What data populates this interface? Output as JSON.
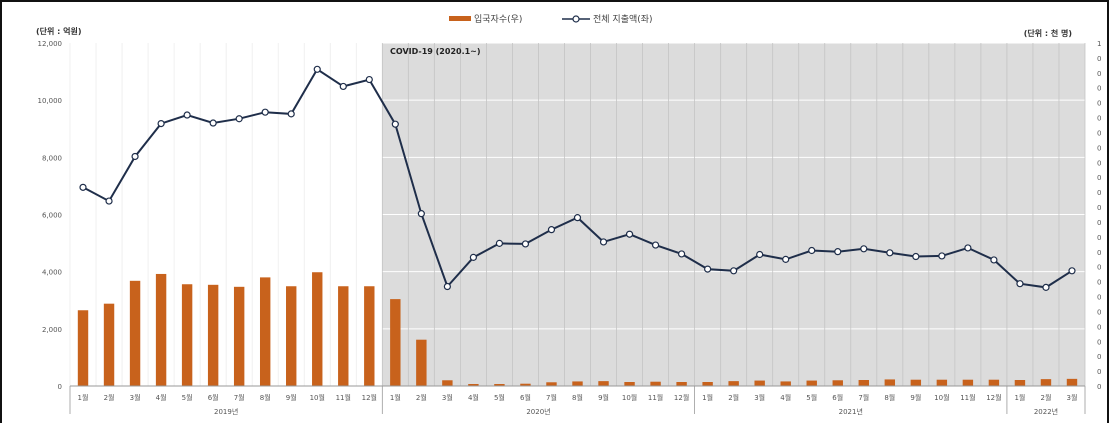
{
  "chart_data": {
    "type": "bar+line",
    "left_unit_label": "(단위 : 억원)",
    "right_unit_label": "(단위 : 천 명)",
    "annotation": "COVID-19 (2020.1~)",
    "legend": [
      {
        "name": "입국자수(우)",
        "kind": "bar",
        "color": "#c8621c"
      },
      {
        "name": "전체 지출액(좌)",
        "kind": "line",
        "color": "#1f2e4a"
      }
    ],
    "y_left": {
      "ticks": [
        "0",
        "2,000",
        "4,000",
        "6,000",
        "8,000",
        "10,000",
        "12,000"
      ],
      "ylim": [
        0,
        12000
      ]
    },
    "right_axis_tick_labels": [
      "0",
      "0",
      "0",
      "0",
      "0",
      "0",
      "0",
      "0",
      "0",
      "0",
      "0",
      "0",
      "0",
      "0",
      "0",
      "0",
      "0",
      "0",
      "0",
      "0",
      "0",
      "0",
      "0",
      "1"
    ],
    "month_labels": [
      "1월",
      "2월",
      "3월",
      "4월",
      "5월",
      "6월",
      "7월",
      "8월",
      "9월",
      "10월",
      "11월",
      "12월",
      "1월",
      "2월",
      "3월",
      "4월",
      "5월",
      "6월",
      "7월",
      "8월",
      "9월",
      "10월",
      "11월",
      "12월",
      "1월",
      "2월",
      "3월",
      "4월",
      "5월",
      "6월",
      "7월",
      "8월",
      "9월",
      "10월",
      "11월",
      "12월",
      "1월",
      "2월",
      "3월"
    ],
    "years": [
      {
        "label": "2019년",
        "start": 0,
        "count": 12
      },
      {
        "label": "2020년",
        "start": 12,
        "count": 12
      },
      {
        "label": "2021년",
        "start": 24,
        "count": 12
      },
      {
        "label": "2022년",
        "start": 36,
        "count": 3
      }
    ],
    "covid_start_index": 12,
    "series": [
      {
        "name": "입국자수(우)",
        "type": "bar",
        "values": [
          2650,
          2880,
          3680,
          3920,
          3560,
          3540,
          3470,
          3800,
          3490,
          3980,
          3490,
          3490,
          3040,
          1620,
          200,
          70,
          70,
          80,
          130,
          160,
          170,
          140,
          150,
          140,
          140,
          170,
          190,
          160,
          190,
          200,
          210,
          230,
          220,
          220,
          220,
          220,
          210,
          240,
          250
        ]
      },
      {
        "name": "전체 지출액(좌)",
        "type": "line",
        "values": [
          6950,
          6470,
          8030,
          9180,
          9480,
          9200,
          9350,
          9580,
          9520,
          11080,
          10480,
          10720,
          9160,
          6030,
          3480,
          4500,
          4990,
          4970,
          5470,
          5890,
          5040,
          5310,
          4930,
          4620,
          4090,
          4030,
          4600,
          4430,
          4740,
          4700,
          4800,
          4660,
          4530,
          4550,
          4830,
          4410,
          3580,
          3450,
          4030
        ]
      }
    ]
  }
}
